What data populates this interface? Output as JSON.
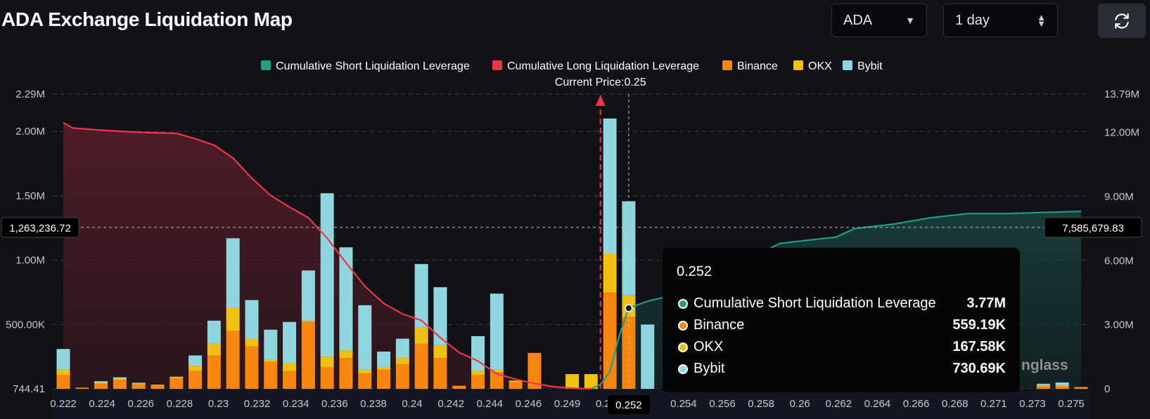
{
  "header": {
    "title": "ADA Exchange Liquidation Map",
    "coin_select": "ADA",
    "range_select": "1 day"
  },
  "colors": {
    "short": "#1f9e84",
    "long": "#f0344c",
    "binance": "#f7860f",
    "okx": "#f2c012",
    "bybit": "#8fd6de"
  },
  "legend": [
    {
      "label": "Cumulative Short Liquidation Leverage",
      "color": "#1f9e84"
    },
    {
      "label": "Cumulative Long Liquidation Leverage",
      "color": "#f0344c"
    },
    {
      "label": "Binance",
      "color": "#f7860f"
    },
    {
      "label": "OKX",
      "color": "#f2c012"
    },
    {
      "label": "Bybit",
      "color": "#8fd6de"
    }
  ],
  "current_price_label": "Current Price:0.25",
  "crosshair": {
    "left_value": "1,263,236.72",
    "right_value": "7,585,679.83",
    "x_label": "0.252"
  },
  "tooltip": {
    "title": "0.252",
    "rows": [
      {
        "name": "Cumulative Short Liquidation Leverage",
        "value": "3.77M",
        "color": "#1f9e84"
      },
      {
        "name": "Binance",
        "value": "559.19K",
        "color": "#f7860f"
      },
      {
        "name": "OKX",
        "value": "167.58K",
        "color": "#f2c012"
      },
      {
        "name": "Bybit",
        "value": "730.69K",
        "color": "#8fd6de"
      }
    ]
  },
  "watermark": "nglass",
  "chart_data": {
    "type": "bar",
    "left_axis": {
      "ticks": [
        "744.41",
        "500.00K",
        "1.00M",
        "1.50M",
        "2.00M",
        "2.29M"
      ],
      "values": [
        744.41,
        500000,
        1000000,
        1500000,
        2000000,
        2290000
      ],
      "range": [
        744.41,
        2290000
      ]
    },
    "right_axis": {
      "ticks": [
        "0",
        "3.00M",
        "6.00M",
        "9.00M",
        "12.00M",
        "13.79M"
      ],
      "values": [
        0,
        3000000,
        6000000,
        9000000,
        12000000,
        13790000
      ],
      "range": [
        0,
        13790000
      ]
    },
    "x_labels": [
      "0.222",
      "0.224",
      "0.226",
      "0.228",
      "0.23",
      "0.232",
      "0.234",
      "0.236",
      "0.238",
      "0.24",
      "0.242",
      "0.244",
      "0.246",
      "0.249",
      "0.25",
      "0.252",
      "0.254",
      "0.256",
      "0.258",
      "0.26",
      "0.262",
      "0.264",
      "0.266",
      "0.268",
      "0.271",
      "0.273",
      "0.275"
    ],
    "bars": [
      {
        "x": 0.222,
        "binance": 110000,
        "okx": 40000,
        "bybit": 160000
      },
      {
        "x": 0.223,
        "binance": 10000,
        "okx": 0,
        "bybit": 0
      },
      {
        "x": 0.224,
        "binance": 40000,
        "okx": 10000,
        "bybit": 10000
      },
      {
        "x": 0.225,
        "binance": 70000,
        "okx": 10000,
        "bybit": 10000
      },
      {
        "x": 0.226,
        "binance": 35000,
        "okx": 5000,
        "bybit": 8000
      },
      {
        "x": 0.227,
        "binance": 28000,
        "okx": 5000,
        "bybit": 0
      },
      {
        "x": 0.228,
        "binance": 85000,
        "okx": 10000,
        "bybit": 0
      },
      {
        "x": 0.229,
        "binance": 140000,
        "okx": 40000,
        "bybit": 80000
      },
      {
        "x": 0.23,
        "binance": 260000,
        "okx": 90000,
        "bybit": 180000
      },
      {
        "x": 0.231,
        "binance": 450000,
        "okx": 180000,
        "bybit": 540000
      },
      {
        "x": 0.232,
        "binance": 330000,
        "okx": 60000,
        "bybit": 300000
      },
      {
        "x": 0.233,
        "binance": 210000,
        "okx": 20000,
        "bybit": 230000
      },
      {
        "x": 0.234,
        "binance": 140000,
        "okx": 60000,
        "bybit": 320000
      },
      {
        "x": 0.235,
        "binance": 520000,
        "okx": 10000,
        "bybit": 390000
      },
      {
        "x": 0.236,
        "binance": 170000,
        "okx": 80000,
        "bybit": 1270000
      },
      {
        "x": 0.237,
        "binance": 240000,
        "okx": 60000,
        "bybit": 800000
      },
      {
        "x": 0.238,
        "binance": 120000,
        "okx": 30000,
        "bybit": 500000
      },
      {
        "x": 0.239,
        "binance": 150000,
        "okx": 20000,
        "bybit": 120000
      },
      {
        "x": 0.24,
        "binance": 190000,
        "okx": 50000,
        "bybit": 150000
      },
      {
        "x": 0.241,
        "binance": 350000,
        "okx": 130000,
        "bybit": 490000
      },
      {
        "x": 0.242,
        "binance": 240000,
        "okx": 100000,
        "bybit": 450000
      },
      {
        "x": 0.243,
        "binance": 25000,
        "okx": 0,
        "bybit": 0
      },
      {
        "x": 0.244,
        "binance": 110000,
        "okx": 30000,
        "bybit": 270000
      },
      {
        "x": 0.245,
        "binance": 130000,
        "okx": 20000,
        "bybit": 590000
      },
      {
        "x": 0.246,
        "binance": 55000,
        "okx": 10000,
        "bybit": 0
      },
      {
        "x": 0.247,
        "binance": 280000,
        "okx": 0,
        "bybit": 0
      },
      {
        "x": 0.249,
        "binance": 0,
        "okx": 115000,
        "bybit": 0
      },
      {
        "x": 0.25,
        "binance": 0,
        "okx": 115000,
        "bybit": 0
      },
      {
        "x": 0.251,
        "binance": 750000,
        "okx": 300000,
        "bybit": 1050000
      },
      {
        "x": 0.252,
        "binance": 559190,
        "okx": 167580,
        "bybit": 730690
      },
      {
        "x": 0.253,
        "binance": 0,
        "okx": 0,
        "bybit": 500000
      },
      {
        "x": 0.274,
        "binance": 20000,
        "okx": 10000,
        "bybit": 10000
      },
      {
        "x": 0.275,
        "binance": 20000,
        "okx": 10000,
        "bybit": 20000
      },
      {
        "x": 0.276,
        "binance": 15000,
        "okx": 0,
        "bybit": 0
      }
    ],
    "long_cumulative": [
      [
        0.222,
        12450000
      ],
      [
        0.2225,
        12200000
      ],
      [
        0.224,
        12100000
      ],
      [
        0.226,
        12000000
      ],
      [
        0.228,
        11950000
      ],
      [
        0.229,
        11700000
      ],
      [
        0.23,
        11400000
      ],
      [
        0.231,
        10800000
      ],
      [
        0.232,
        9850000
      ],
      [
        0.233,
        9050000
      ],
      [
        0.234,
        8500000
      ],
      [
        0.235,
        8000000
      ],
      [
        0.236,
        7050000
      ],
      [
        0.237,
        5900000
      ],
      [
        0.238,
        4800000
      ],
      [
        0.239,
        4000000
      ],
      [
        0.24,
        3500000
      ],
      [
        0.241,
        3200000
      ],
      [
        0.242,
        2400000
      ],
      [
        0.243,
        1700000
      ],
      [
        0.244,
        1300000
      ],
      [
        0.245,
        700000
      ],
      [
        0.246,
        450000
      ],
      [
        0.247,
        250000
      ],
      [
        0.248,
        100000
      ],
      [
        0.249,
        30000
      ],
      [
        0.25,
        0
      ]
    ],
    "short_cumulative": [
      [
        0.25,
        0
      ],
      [
        0.2505,
        200000
      ],
      [
        0.251,
        800000
      ],
      [
        0.2515,
        2500000
      ],
      [
        0.252,
        3770000
      ],
      [
        0.253,
        4100000
      ],
      [
        0.254,
        4300000
      ],
      [
        0.256,
        5000000
      ],
      [
        0.258,
        5900000
      ],
      [
        0.26,
        6800000
      ],
      [
        0.261,
        6900000
      ],
      [
        0.262,
        7000000
      ],
      [
        0.263,
        7100000
      ],
      [
        0.264,
        7500000
      ],
      [
        0.265,
        7600000
      ],
      [
        0.266,
        7700000
      ],
      [
        0.268,
        8000000
      ],
      [
        0.27,
        8200000
      ],
      [
        0.272,
        8200000
      ],
      [
        0.274,
        8250000
      ],
      [
        0.276,
        8300000
      ]
    ],
    "current_price": 0.2505,
    "crosshair_x": 0.252
  }
}
